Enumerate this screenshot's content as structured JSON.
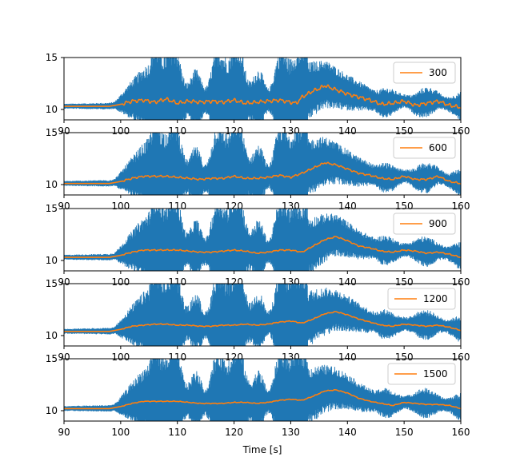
{
  "chart_data": {
    "type": "line",
    "xlabel": "Time [s]",
    "xlim": [
      90,
      160
    ],
    "x_ticks": [
      "90",
      "100",
      "110",
      "120",
      "130",
      "140",
      "150",
      "160"
    ],
    "ylim": [
      9,
      15
    ],
    "y_ticks": [
      "10",
      "15"
    ],
    "legend_position": "upper right",
    "colors": {
      "raw": "#1f77b4",
      "smoothed": "#ff7f0e"
    },
    "panels": [
      {
        "legend": "300",
        "raw": {
          "name": "",
          "color": "#1f77b4"
        },
        "smoothed": {
          "name": "300",
          "x": [
            90,
            95,
            98,
            100,
            102,
            104,
            106,
            108,
            110,
            112,
            114,
            116,
            118,
            120,
            122,
            124,
            126,
            128,
            130,
            131,
            132,
            133,
            134,
            135,
            136,
            137,
            138,
            140,
            142,
            144,
            146,
            148,
            150,
            152,
            154,
            156,
            158,
            160
          ],
          "y": [
            10.3,
            10.3,
            10.3,
            10.5,
            10.8,
            10.9,
            10.7,
            11.0,
            10.6,
            10.8,
            10.7,
            10.8,
            10.7,
            10.9,
            10.6,
            10.7,
            10.8,
            10.9,
            10.7,
            10.6,
            11.2,
            11.5,
            11.8,
            12.0,
            12.3,
            12.1,
            11.9,
            11.5,
            11.2,
            10.9,
            10.5,
            10.6,
            10.8,
            10.4,
            10.6,
            10.8,
            10.4,
            10.2
          ]
        }
      },
      {
        "legend": "600",
        "raw": {
          "name": "",
          "color": "#1f77b4"
        },
        "smoothed": {
          "name": "600",
          "x": [
            90,
            95,
            98,
            100,
            102,
            104,
            106,
            108,
            110,
            112,
            114,
            116,
            118,
            120,
            122,
            124,
            126,
            128,
            130,
            132,
            134,
            136,
            138,
            140,
            142,
            144,
            146,
            148,
            150,
            152,
            154,
            156,
            158,
            160
          ],
          "y": [
            10.1,
            10.1,
            10.1,
            10.3,
            10.6,
            10.8,
            10.8,
            10.8,
            10.7,
            10.6,
            10.5,
            10.6,
            10.6,
            10.8,
            10.6,
            10.6,
            10.7,
            10.9,
            10.7,
            11.1,
            11.6,
            12.1,
            11.9,
            11.5,
            11.1,
            10.9,
            10.6,
            10.5,
            10.8,
            10.5,
            10.5,
            10.8,
            10.3,
            10.1
          ]
        }
      },
      {
        "legend": "900",
        "raw": {
          "name": "",
          "color": "#1f77b4"
        },
        "smoothed": {
          "name": "900",
          "x": [
            90,
            95,
            98,
            100,
            102,
            104,
            106,
            108,
            110,
            112,
            114,
            116,
            118,
            120,
            122,
            124,
            126,
            128,
            130,
            132,
            134,
            136,
            138,
            140,
            142,
            144,
            146,
            148,
            150,
            152,
            154,
            156,
            158,
            160
          ],
          "y": [
            10.3,
            10.3,
            10.3,
            10.5,
            10.8,
            11.0,
            11.0,
            11.0,
            11.0,
            10.9,
            10.8,
            10.8,
            10.9,
            11.0,
            10.9,
            10.7,
            10.8,
            11.0,
            11.0,
            10.8,
            11.4,
            12.0,
            12.3,
            11.9,
            11.4,
            11.2,
            10.9,
            10.8,
            11.0,
            10.9,
            10.7,
            10.8,
            10.6,
            10.3
          ]
        }
      },
      {
        "legend": "1200",
        "raw": {
          "name": "",
          "color": "#1f77b4"
        },
        "smoothed": {
          "name": "1200",
          "x": [
            90,
            95,
            98,
            100,
            102,
            104,
            106,
            108,
            110,
            112,
            114,
            116,
            118,
            120,
            122,
            124,
            126,
            128,
            130,
            132,
            134,
            136,
            138,
            140,
            142,
            144,
            146,
            148,
            150,
            152,
            154,
            156,
            158,
            160
          ],
          "y": [
            10.4,
            10.4,
            10.4,
            10.6,
            10.9,
            11.0,
            11.1,
            11.1,
            11.0,
            11.0,
            10.9,
            10.9,
            11.0,
            11.0,
            11.1,
            11.0,
            11.1,
            11.3,
            11.4,
            11.2,
            11.6,
            12.1,
            12.3,
            12.0,
            11.6,
            11.3,
            11.0,
            10.9,
            11.1,
            11.0,
            10.9,
            11.0,
            10.8,
            10.5
          ]
        }
      },
      {
        "legend": "1500",
        "raw": {
          "name": "",
          "color": "#1f77b4"
        },
        "smoothed": {
          "name": "1500",
          "x": [
            90,
            95,
            98,
            100,
            102,
            104,
            106,
            108,
            110,
            112,
            114,
            116,
            118,
            120,
            122,
            124,
            126,
            128,
            130,
            132,
            134,
            136,
            138,
            140,
            142,
            144,
            146,
            148,
            150,
            152,
            154,
            156,
            158,
            160
          ],
          "y": [
            10.2,
            10.2,
            10.2,
            10.4,
            10.7,
            10.9,
            10.9,
            10.9,
            10.9,
            10.8,
            10.7,
            10.7,
            10.7,
            10.8,
            10.8,
            10.7,
            10.8,
            11.0,
            11.1,
            11.0,
            11.4,
            11.9,
            12.0,
            11.7,
            11.2,
            10.9,
            10.7,
            10.5,
            10.8,
            10.7,
            10.6,
            10.6,
            10.5,
            10.2
          ]
        }
      }
    ]
  }
}
